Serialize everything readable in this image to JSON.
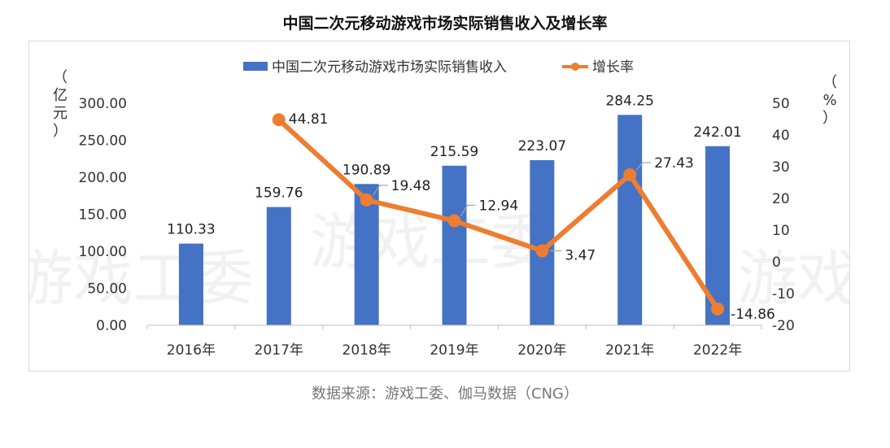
{
  "title": "中国二次元移动游戏市场实际销售收入及增长率",
  "source": "数据来源：游戏工委、伽马数据（CNG）",
  "watermark": "游戏工委",
  "colors": {
    "bar": "#4472c4",
    "line": "#ed7d31",
    "axis": "#bfbfbf",
    "leader": "#a6a6a6"
  },
  "chart_data": {
    "type": "bar",
    "categories": [
      "2016年",
      "2017年",
      "2018年",
      "2019年",
      "2020年",
      "2021年",
      "2022年"
    ],
    "series": [
      {
        "name": "中国二次元移动游戏市场实际销售收入",
        "type": "bar",
        "axis": "left",
        "values": [
          110.33,
          159.76,
          190.89,
          215.59,
          223.07,
          284.25,
          242.01
        ],
        "labels": [
          "110.33",
          "159.76",
          "190.89",
          "215.59",
          "223.07",
          "284.25",
          "242.01"
        ]
      },
      {
        "name": "增长率",
        "type": "line",
        "axis": "right",
        "values": [
          null,
          44.81,
          19.48,
          12.94,
          3.47,
          27.43,
          -14.86
        ],
        "labels": [
          "",
          "44.81",
          "19.48",
          "12.94",
          "3.47",
          "27.43",
          "-14.86"
        ]
      }
    ],
    "y_left": {
      "unit_chars": [
        "（",
        "亿",
        "元",
        "）"
      ],
      "ylim": [
        0,
        300
      ],
      "ticks": [
        "0.00",
        "50.00",
        "100.00",
        "150.00",
        "200.00",
        "250.00",
        "300.00"
      ]
    },
    "y_right": {
      "unit_chars": [
        "（",
        "%",
        "）"
      ],
      "ylim": [
        -20,
        50
      ],
      "ticks": [
        "-20",
        "-10",
        "0",
        "10",
        "20",
        "30",
        "40",
        "50"
      ]
    },
    "legend_position": "top",
    "grid": false
  }
}
